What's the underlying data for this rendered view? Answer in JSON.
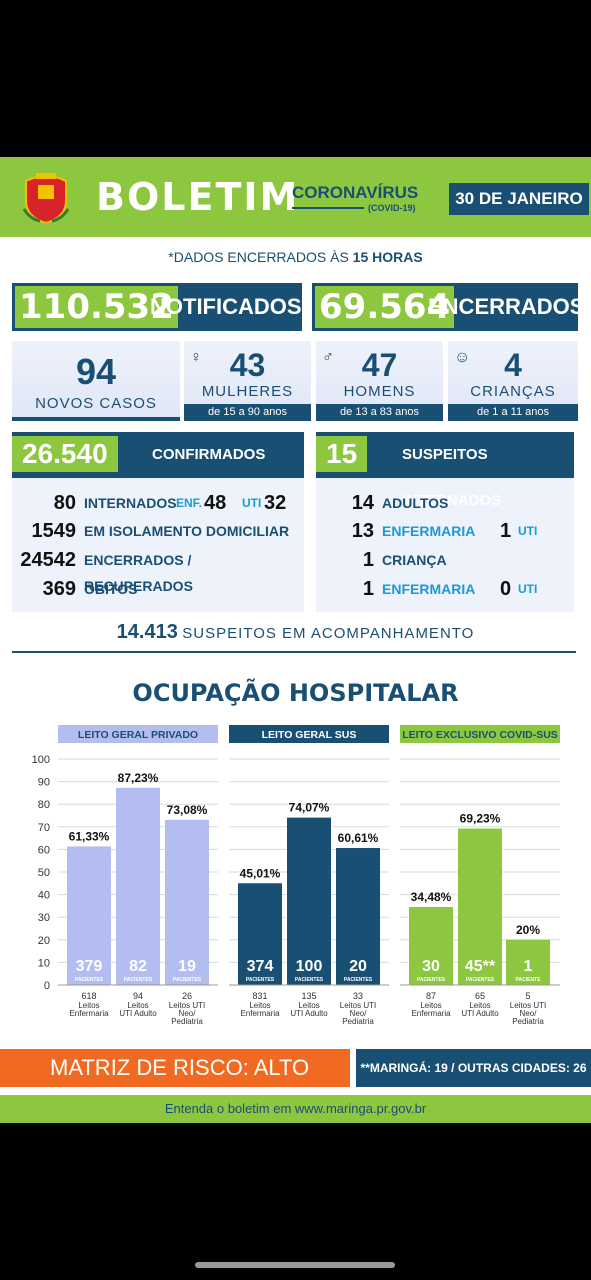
{
  "header": {
    "title": "BOLETIM",
    "corona": "CORONAVÍRUS",
    "covid": "(COVID-19)",
    "date": "30 DE JANEIRO"
  },
  "dados": {
    "prefix": "*DADOS ENCERRADOS ÀS",
    "hour": "15 HORAS"
  },
  "notificados": {
    "value": "110.532",
    "label": "NOTIFICADOS"
  },
  "encerrados": {
    "value": "69.564",
    "label": "ENCERRADOS"
  },
  "cards": {
    "novos": {
      "value": "94",
      "label": "NOVOS CASOS"
    },
    "mulheres": {
      "value": "43",
      "label": "MULHERES",
      "sub": "de 15 a 90 anos"
    },
    "homens": {
      "value": "47",
      "label": "HOMENS",
      "sub": "de 13 a 83 anos"
    },
    "criancas": {
      "value": "4",
      "label": "CRIANÇAS",
      "sub": "de 1 a 11 anos"
    }
  },
  "confirmados": {
    "value": "26.540",
    "label": "CONFIRMADOS",
    "internados": {
      "value": "80",
      "label": "INTERNADOS",
      "enf_label": "ENF.",
      "enf": "48",
      "uti_label": "UTI",
      "uti": "32"
    },
    "isolamento": {
      "value": "1549",
      "label": "EM ISOLAMENTO DOMICILIAR"
    },
    "recuperados": {
      "value": "24542",
      "label": "ENCERRADOS / RECUPERADOS"
    },
    "obitos": {
      "value": "369",
      "label": "ÓBITOS"
    }
  },
  "suspeitos": {
    "value": "15",
    "label": "SUSPEITOS INTERNADOS",
    "adultos": {
      "value": "14",
      "label": "ADULTOS"
    },
    "adultos_enf": {
      "value": "13",
      "label": "ENFERMARIA",
      "uti": "1",
      "uti_label": "UTI"
    },
    "crianca": {
      "value": "1",
      "label": "CRIANÇA"
    },
    "crianca_enf": {
      "value": "1",
      "label": "ENFERMARIA",
      "uti": "0",
      "uti_label": "UTI"
    }
  },
  "acompanhamento": {
    "value": "14.413",
    "label": "SUSPEITOS EM ACOMPANHAMENTO"
  },
  "ocupacao_title": "OCUPAÇÃO HOSPITALAR",
  "colors": {
    "blue": "#1a4f74",
    "green": "#8dc63f",
    "lavender": "#b4bdf0",
    "orange": "#f26a21"
  },
  "chart_data": [
    {
      "type": "bar",
      "title": "LEITO GERAL PRIVADO",
      "ylim": [
        0,
        100
      ],
      "yticks": [
        "0",
        "10",
        "20",
        "30",
        "40",
        "50",
        "60",
        "70",
        "80",
        "90",
        "100"
      ],
      "categories": [
        {
          "total": "618",
          "lines": [
            "Leitos",
            "Enfermaria"
          ]
        },
        {
          "total": "94",
          "lines": [
            "Leitos",
            "UTI Adulto"
          ]
        },
        {
          "total": "26",
          "lines": [
            "Leitos UTI",
            "Neo/",
            "Pediatria"
          ]
        }
      ],
      "values": [
        61.33,
        87.23,
        73.08
      ],
      "value_labels": [
        "61,33%",
        "87,23%",
        "73,08%"
      ],
      "pacientes": [
        "379",
        "82",
        "19"
      ],
      "pacientes_label": "PACIENTES",
      "color": "#b4bdf0"
    },
    {
      "type": "bar",
      "title": "LEITO GERAL SUS",
      "ylim": [
        0,
        100
      ],
      "categories": [
        {
          "total": "831",
          "lines": [
            "Leitos",
            "Enfermaria"
          ]
        },
        {
          "total": "135",
          "lines": [
            "Leitos",
            "UTI Adulto"
          ]
        },
        {
          "total": "33",
          "lines": [
            "Leitos UTI",
            "Neo/",
            "Pediatria"
          ]
        }
      ],
      "values": [
        45.01,
        74.07,
        60.61
      ],
      "value_labels": [
        "45,01%",
        "74,07%",
        "60,61%"
      ],
      "pacientes": [
        "374",
        "100",
        "20"
      ],
      "pacientes_label": "PACIENTES",
      "color": "#1a4f74"
    },
    {
      "type": "bar",
      "title": "LEITO EXCLUSIVO COVID-SUS",
      "ylim": [
        0,
        100
      ],
      "categories": [
        {
          "total": "87",
          "lines": [
            "Leitos",
            "Enfermaria"
          ]
        },
        {
          "total": "65",
          "lines": [
            "Leitos",
            "UTI Adulto"
          ]
        },
        {
          "total": "5",
          "lines": [
            "Leitos UTI",
            "Neo/",
            "Pediatria"
          ]
        }
      ],
      "values": [
        34.48,
        69.23,
        20
      ],
      "value_labels": [
        "34,48%",
        "69,23%",
        "20%"
      ],
      "pacientes": [
        "30",
        "45**",
        "1"
      ],
      "pacientes_label": "PACIENTES",
      "pacientes_last_label": "PACIENTE",
      "color": "#8dc63f"
    }
  ],
  "risk": {
    "label": "MATRIZ DE RISCO: ALTO",
    "note": "**MARINGÁ: 19 / OUTRAS CIDADES: 26"
  },
  "footer": {
    "text": "Entenda o boletim em www.maringa.pr.gov.br"
  }
}
